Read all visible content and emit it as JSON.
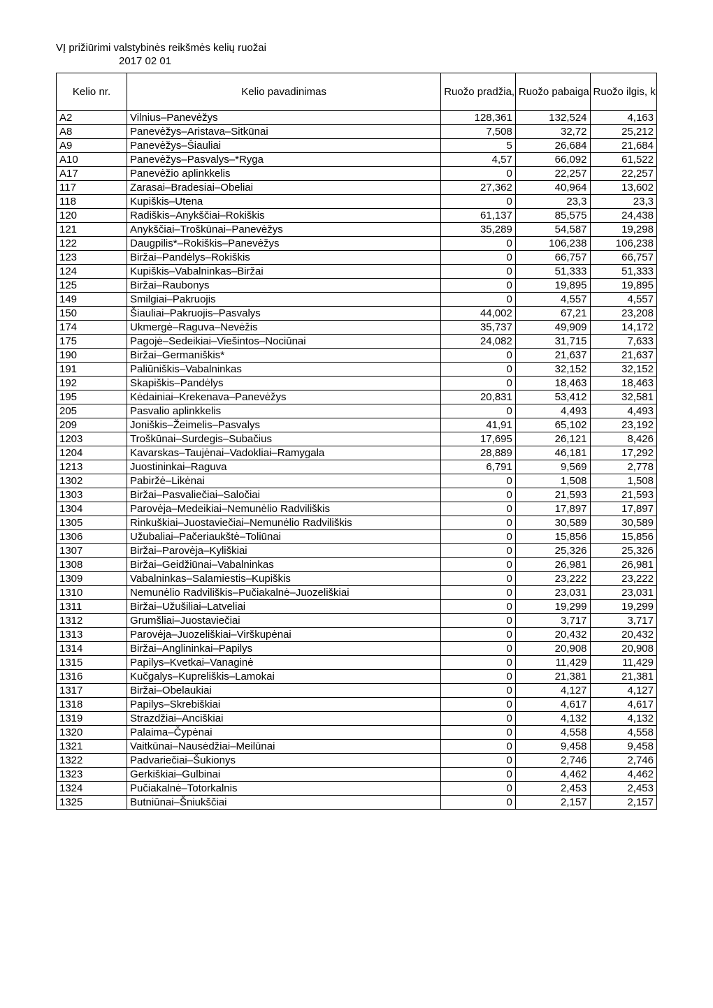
{
  "title": "VĮ prižiūrimi valstybinės reikšmės kelių ruožai",
  "date": "2017 02 01",
  "headers": {
    "kelio_nr": "Kelio nr.",
    "kelio_pavadinimas": "Kelio pavadinimas",
    "ruozo_pradzia": "Ruožo pradžia, km",
    "ruozo_pabaiga": "Ruožo pabaiga, km",
    "ruozo_ilgis": "Ruožo ilgis, km"
  },
  "rows": [
    {
      "nr": "A2",
      "name": "Vilnius–Panevėžys",
      "start": "128,361",
      "end": "132,524",
      "len": "4,163"
    },
    {
      "nr": "A8",
      "name": "Panevėžys–Aristava–Sitkūnai",
      "start": "7,508",
      "end": "32,72",
      "len": "25,212"
    },
    {
      "nr": "A9",
      "name": "Panevėžys–Šiauliai",
      "start": "5",
      "end": "26,684",
      "len": "21,684"
    },
    {
      "nr": "A10",
      "name": "Panevėžys–Pasvalys–*Ryga",
      "start": "4,57",
      "end": "66,092",
      "len": "61,522"
    },
    {
      "nr": "A17",
      "name": "Panevėžio aplinkkelis",
      "start": "0",
      "end": "22,257",
      "len": "22,257"
    },
    {
      "nr": "117",
      "name": "Zarasai–Bradesiai–Obeliai",
      "start": "27,362",
      "end": "40,964",
      "len": "13,602"
    },
    {
      "nr": "118",
      "name": "Kupiškis–Utena",
      "start": "0",
      "end": "23,3",
      "len": "23,3"
    },
    {
      "nr": "120",
      "name": "Radiškis–Anykščiai–Rokiškis",
      "start": "61,137",
      "end": "85,575",
      "len": "24,438"
    },
    {
      "nr": "121",
      "name": "Anykščiai–Troškūnai–Panevėžys",
      "start": "35,289",
      "end": "54,587",
      "len": "19,298"
    },
    {
      "nr": "122",
      "name": "Daugpilis*–Rokiškis–Panevėžys",
      "start": "0",
      "end": "106,238",
      "len": "106,238"
    },
    {
      "nr": "123",
      "name": "Biržai–Pandėlys–Rokiškis",
      "start": "0",
      "end": "66,757",
      "len": "66,757"
    },
    {
      "nr": "124",
      "name": "Kupiškis–Vabalninkas–Biržai",
      "start": "0",
      "end": "51,333",
      "len": "51,333"
    },
    {
      "nr": "125",
      "name": "Biržai–Raubonys",
      "start": "0",
      "end": "19,895",
      "len": "19,895"
    },
    {
      "nr": "149",
      "name": "Smilgiai–Pakruojis",
      "start": "0",
      "end": "4,557",
      "len": "4,557"
    },
    {
      "nr": "150",
      "name": "Šiauliai–Pakruojis–Pasvalys",
      "start": "44,002",
      "end": "67,21",
      "len": "23,208"
    },
    {
      "nr": "174",
      "name": "Ukmergė–Raguva–Nevėžis",
      "start": "35,737",
      "end": "49,909",
      "len": "14,172"
    },
    {
      "nr": "175",
      "name": "Pagojė–Sedeikiai–Viešintos–Nociūnai",
      "start": "24,082",
      "end": "31,715",
      "len": "7,633"
    },
    {
      "nr": "190",
      "name": "Biržai–Germaniškis*",
      "start": "0",
      "end": "21,637",
      "len": "21,637"
    },
    {
      "nr": "191",
      "name": "Paliūniškis–Vabalninkas",
      "start": "0",
      "end": "32,152",
      "len": "32,152"
    },
    {
      "nr": "192",
      "name": "Skapiškis–Pandėlys",
      "start": "0",
      "end": "18,463",
      "len": "18,463"
    },
    {
      "nr": "195",
      "name": "Kėdainiai–Krekenava–Panevėžys",
      "start": "20,831",
      "end": "53,412",
      "len": "32,581"
    },
    {
      "nr": "205",
      "name": "Pasvalio aplinkkelis",
      "start": "0",
      "end": "4,493",
      "len": "4,493"
    },
    {
      "nr": "209",
      "name": "Joniškis–Žeimelis–Pasvalys",
      "start": "41,91",
      "end": "65,102",
      "len": "23,192"
    },
    {
      "nr": "1203",
      "name": "Troškūnai–Surdegis–Subačius",
      "start": "17,695",
      "end": "26,121",
      "len": "8,426"
    },
    {
      "nr": "1204",
      "name": "Kavarskas–Taujėnai–Vadokliai–Ramygala",
      "start": "28,889",
      "end": "46,181",
      "len": "17,292"
    },
    {
      "nr": "1213",
      "name": "Juostininkai–Raguva",
      "start": "6,791",
      "end": "9,569",
      "len": "2,778"
    },
    {
      "nr": "1302",
      "name": "Pabiržė–Likėnai",
      "start": "0",
      "end": "1,508",
      "len": "1,508"
    },
    {
      "nr": "1303",
      "name": "Biržai–Pasvaliečiai–Saločiai",
      "start": "0",
      "end": "21,593",
      "len": "21,593"
    },
    {
      "nr": "1304",
      "name": "Parovėja–Medeikiai–Nemunėlio Radviliškis",
      "start": "0",
      "end": "17,897",
      "len": "17,897"
    },
    {
      "nr": "1305",
      "name": "Rinkuškiai–Juostaviečiai–Nemunėlio Radviliškis",
      "start": "0",
      "end": "30,589",
      "len": "30,589"
    },
    {
      "nr": "1306",
      "name": "Užubaliai–Pačeriaukštė–Toliūnai",
      "start": "0",
      "end": "15,856",
      "len": "15,856"
    },
    {
      "nr": "1307",
      "name": "Biržai–Parovėja–Kyliškiai",
      "start": "0",
      "end": "25,326",
      "len": "25,326"
    },
    {
      "nr": "1308",
      "name": "Biržai–Geidžiūnai–Vabalninkas",
      "start": "0",
      "end": "26,981",
      "len": "26,981"
    },
    {
      "nr": "1309",
      "name": "Vabalninkas–Salamiestis–Kupiškis",
      "start": "0",
      "end": "23,222",
      "len": "23,222"
    },
    {
      "nr": "1310",
      "name": "Nemunėlio Radviliškis–Pučiakalnė–Juozeliškiai",
      "start": "0",
      "end": "23,031",
      "len": "23,031"
    },
    {
      "nr": "1311",
      "name": "Biržai–Užušiliai–Latveliai",
      "start": "0",
      "end": "19,299",
      "len": "19,299"
    },
    {
      "nr": "1312",
      "name": "Grumšliai–Juostaviečiai",
      "start": "0",
      "end": "3,717",
      "len": "3,717"
    },
    {
      "nr": "1313",
      "name": "Parovėja–Juozeliškiai–Virškupėnai",
      "start": "0",
      "end": "20,432",
      "len": "20,432"
    },
    {
      "nr": "1314",
      "name": "Biržai–Anglininkai–Papilys",
      "start": "0",
      "end": "20,908",
      "len": "20,908"
    },
    {
      "nr": "1315",
      "name": "Papilys–Kvetkai–Vanaginė",
      "start": "0",
      "end": "11,429",
      "len": "11,429"
    },
    {
      "nr": "1316",
      "name": "Kučgalys–Kupreliškis–Lamokai",
      "start": "0",
      "end": "21,381",
      "len": "21,381"
    },
    {
      "nr": "1317",
      "name": "Biržai–Obelaukiai",
      "start": "0",
      "end": "4,127",
      "len": "4,127"
    },
    {
      "nr": "1318",
      "name": "Papilys–Skrebiškiai",
      "start": "0",
      "end": "4,617",
      "len": "4,617"
    },
    {
      "nr": "1319",
      "name": "Strazdžiai–Anciškiai",
      "start": "0",
      "end": "4,132",
      "len": "4,132"
    },
    {
      "nr": "1320",
      "name": "Palaima–Čypėnai",
      "start": "0",
      "end": "4,558",
      "len": "4,558"
    },
    {
      "nr": "1321",
      "name": "Vaitkūnai–Nausėdžiai–Meilūnai",
      "start": "0",
      "end": "9,458",
      "len": "9,458"
    },
    {
      "nr": "1322",
      "name": "Padvariečiai–Šukionys",
      "start": "0",
      "end": "2,746",
      "len": "2,746"
    },
    {
      "nr": "1323",
      "name": "Gerkiškiai–Gulbinai",
      "start": "0",
      "end": "4,462",
      "len": "4,462"
    },
    {
      "nr": "1324",
      "name": "Pučiakalnė–Totorkalnis",
      "start": "0",
      "end": "2,453",
      "len": "2,453"
    },
    {
      "nr": "1325",
      "name": "Butniūnai–Šniukščiai",
      "start": "0",
      "end": "2,157",
      "len": "2,157"
    }
  ]
}
